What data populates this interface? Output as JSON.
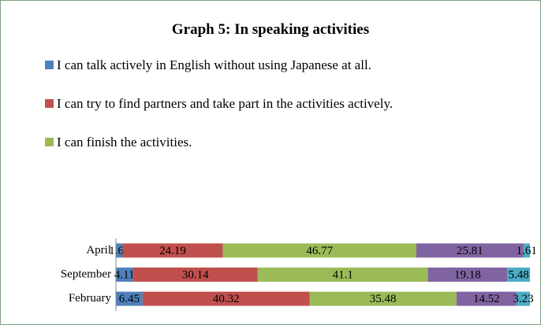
{
  "chart_data": {
    "type": "stacked-bar-horizontal",
    "title": "Graph 5: In speaking activities",
    "categories": [
      "April",
      "September",
      "February"
    ],
    "xlim": [
      0,
      100
    ],
    "series": [
      {
        "name": "I can talk actively in English without using Japanese at all.",
        "color": "#4f81bd",
        "values": [
          1.61,
          4.11,
          6.45
        ]
      },
      {
        "name": "I can try to find partners and take part in the activities actively.",
        "color": "#c0504d",
        "values": [
          24.19,
          30.14,
          40.32
        ]
      },
      {
        "name": "I can finish the activities.",
        "color": "#9bbb59",
        "values": [
          46.77,
          41.1,
          35.48
        ]
      },
      {
        "color": "#8064a2",
        "values": [
          25.81,
          19.18,
          14.52
        ]
      },
      {
        "color": "#4bacc6",
        "values": [
          1.61,
          5.48,
          3.23
        ]
      }
    ]
  }
}
